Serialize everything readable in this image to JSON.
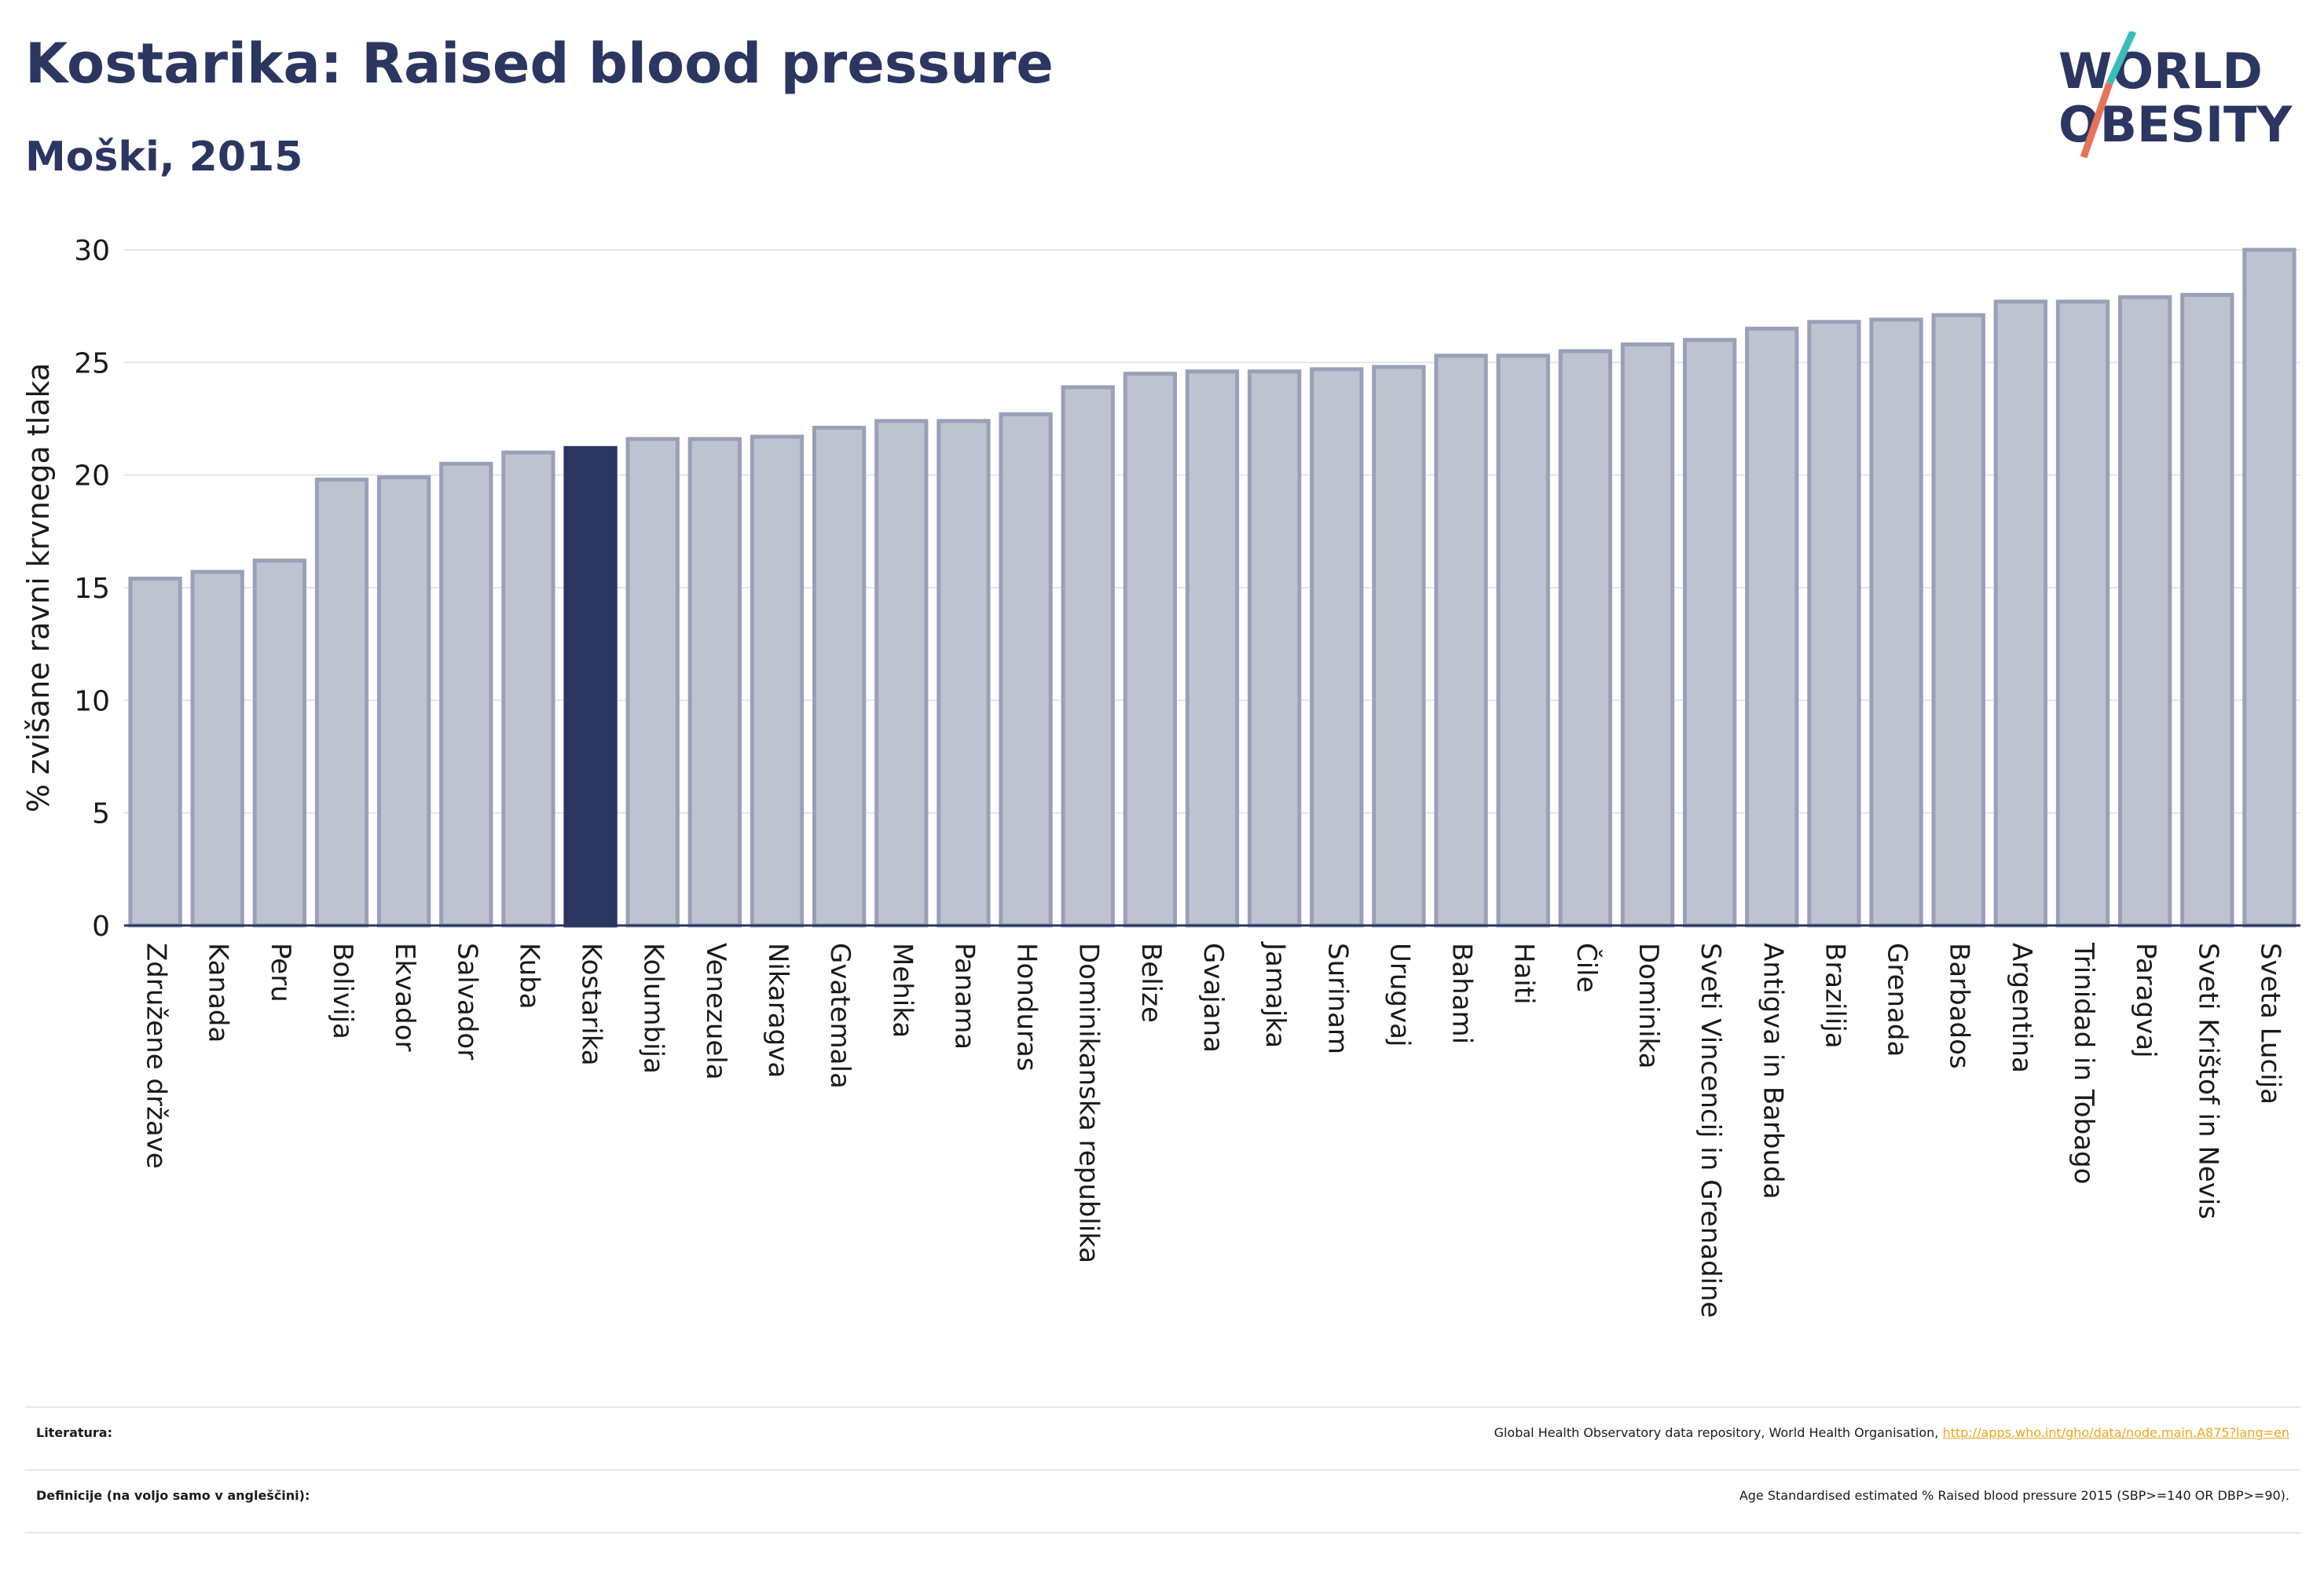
{
  "title": "Kostarika: Raised blood pressure",
  "subtitle": "Moški, 2015",
  "logo": {
    "line1": "WORLD",
    "line2": "OBESITY"
  },
  "colors": {
    "title": "#2b3661",
    "bar": "#bfc3cf",
    "bar_border": "#9aa0b8",
    "highlight": "#2b3661",
    "link": "#e9a81b"
  },
  "chart_data": {
    "type": "bar",
    "ylabel": "% zvišane ravni krvnega tlaka",
    "ylim": [
      0,
      30
    ],
    "yticks": [
      0,
      5,
      10,
      15,
      20,
      25,
      30
    ],
    "grid": true,
    "highlight": "Kostarika",
    "categories": [
      "Združene države",
      "Kanada",
      "Peru",
      "Bolivija",
      "Ekvador",
      "Salvador",
      "Kuba",
      "Kostarika",
      "Kolumbija",
      "Venezuela",
      "Nikaragva",
      "Gvatemala",
      "Mehika",
      "Panama",
      "Honduras",
      "Dominikanska republika",
      "Belize",
      "Gvajana",
      "Jamajka",
      "Surinam",
      "Urugvaj",
      "Bahami",
      "Haiti",
      "Čile",
      "Dominika",
      "Sveti Vincencij in Grenadine",
      "Antigva in Barbuda",
      "Brazilija",
      "Grenada",
      "Barbados",
      "Argentina",
      "Trinidad in Tobago",
      "Paragvaj",
      "Sveti Krištof in Nevis",
      "Sveta Lucija"
    ],
    "values": [
      15.4,
      15.7,
      16.2,
      19.8,
      19.9,
      20.5,
      21.0,
      21.2,
      21.6,
      21.6,
      21.7,
      22.1,
      22.4,
      22.4,
      22.7,
      23.9,
      24.5,
      24.6,
      24.6,
      24.7,
      24.8,
      25.3,
      25.3,
      25.5,
      25.8,
      26.0,
      26.5,
      26.8,
      26.9,
      27.1,
      27.7,
      27.7,
      27.9,
      28.0,
      30.0
    ]
  },
  "footer": {
    "literature_label": "Literatura:",
    "literature_text": "Global Health Observatory data repository, World Health Organisation, ",
    "literature_link": "http://apps.who.int/gho/data/node.main.A875?lang=en",
    "definitions_label": "Definicije (na voljo samo v angleščini):",
    "definitions_text": "Age Standardised estimated % Raised blood pressure 2015 (SBP>=140 OR DBP>=90)."
  }
}
